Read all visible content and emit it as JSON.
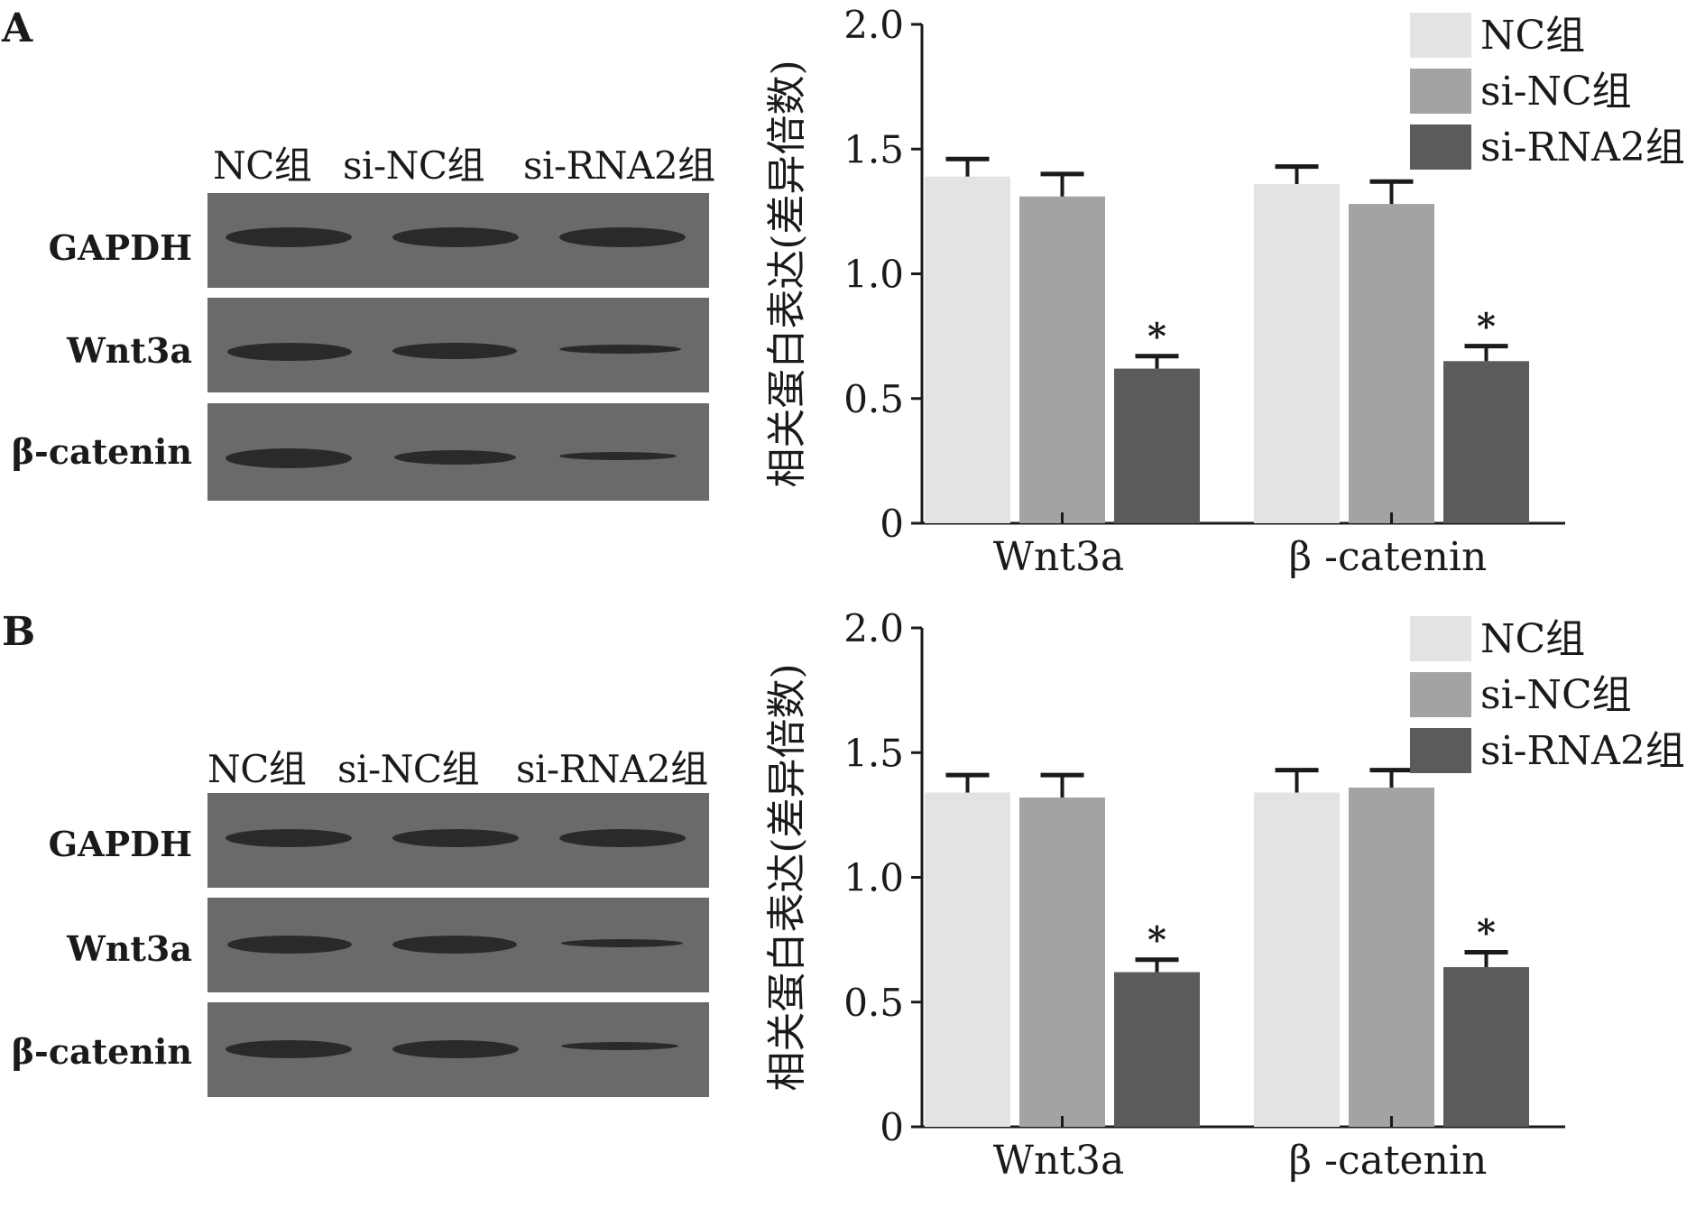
{
  "panels": [
    {
      "letter": "A",
      "lanes": [
        "NC组",
        "si-NC组",
        "si-RNA2组"
      ],
      "blots": [
        {
          "protein": "GAPDH",
          "band_intensity": [
            1.0,
            1.0,
            1.0
          ]
        },
        {
          "protein": "Wnt3a",
          "band_intensity": [
            0.95,
            0.85,
            0.45
          ]
        },
        {
          "protein": "β-catenin",
          "band_intensity": [
            0.9,
            0.8,
            0.4
          ]
        }
      ]
    },
    {
      "letter": "B",
      "lanes": [
        "NC组",
        "si-NC组",
        "si-RNA2组"
      ],
      "blots": [
        {
          "protein": "GAPDH",
          "band_intensity": [
            1.0,
            1.0,
            1.0
          ]
        },
        {
          "protein": "Wnt3a",
          "band_intensity": [
            0.95,
            0.9,
            0.45
          ]
        },
        {
          "protein": "β-catenin",
          "band_intensity": [
            0.9,
            0.88,
            0.4
          ]
        }
      ]
    }
  ],
  "chart_data": [
    {
      "type": "bar",
      "title": "",
      "xlabel": "",
      "ylabel": "相关蛋白表达(差异倍数)",
      "ylim": [
        0,
        2.0
      ],
      "yticks": [
        "0",
        "0.5",
        "1.0",
        "1.5",
        "2.0"
      ],
      "categories": [
        "Wnt3a",
        "β -catenin"
      ],
      "series": [
        {
          "name": "NC组",
          "color": "#e3e3e3",
          "values": [
            1.39,
            1.36
          ],
          "errors": [
            0.07,
            0.07
          ]
        },
        {
          "name": "si-NC组",
          "color": "#a3a3a3",
          "values": [
            1.31,
            1.28
          ],
          "errors": [
            0.09,
            0.09
          ]
        },
        {
          "name": "si-RNA2组",
          "color": "#5b5b5b",
          "values": [
            0.62,
            0.65
          ],
          "errors": [
            0.05,
            0.06
          ]
        }
      ],
      "annotations": [
        "*",
        "*"
      ],
      "legend": "top-right"
    },
    {
      "type": "bar",
      "title": "",
      "xlabel": "",
      "ylabel": "相关蛋白表达(差异倍数)",
      "ylim": [
        0,
        2.0
      ],
      "yticks": [
        "0",
        "0.5",
        "1.0",
        "1.5",
        "2.0"
      ],
      "categories": [
        "Wnt3a",
        "β -catenin"
      ],
      "series": [
        {
          "name": "NC组",
          "color": "#e3e3e3",
          "values": [
            1.34,
            1.34
          ],
          "errors": [
            0.07,
            0.09
          ]
        },
        {
          "name": "si-NC组",
          "color": "#a3a3a3",
          "values": [
            1.32,
            1.36
          ],
          "errors": [
            0.09,
            0.07
          ]
        },
        {
          "name": "si-RNA2组",
          "color": "#5b5b5b",
          "values": [
            0.62,
            0.64
          ],
          "errors": [
            0.05,
            0.06
          ]
        }
      ],
      "annotations": [
        "*",
        "*"
      ],
      "legend": "top-right"
    }
  ]
}
